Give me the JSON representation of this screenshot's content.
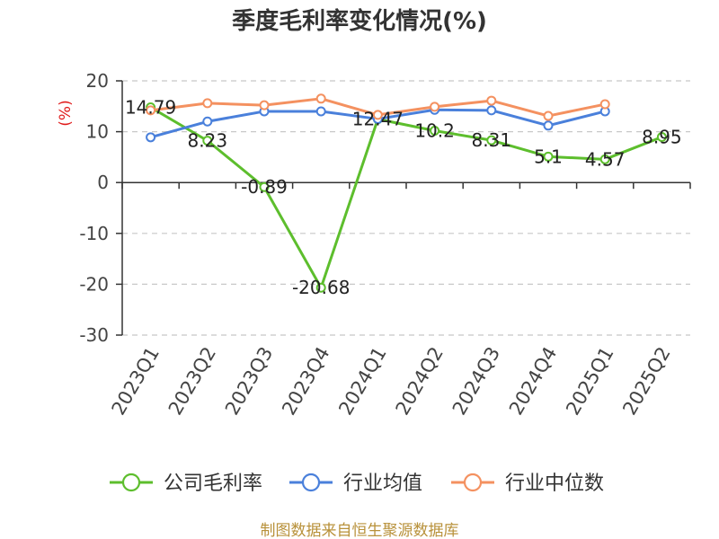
{
  "chart_data": {
    "type": "line",
    "title": "季度毛利率变化情况(%)",
    "ylabel": "(%)",
    "xlabel": "",
    "categories": [
      "2023Q1",
      "2023Q2",
      "2023Q3",
      "2023Q4",
      "2024Q1",
      "2024Q2",
      "2024Q3",
      "2024Q4",
      "2025Q1",
      "2025Q2"
    ],
    "ylim": [
      -30,
      20
    ],
    "yticks": [
      20,
      10,
      0,
      -10,
      -20,
      -30
    ],
    "grid": true,
    "legend_position": "bottom",
    "series": [
      {
        "name": "公司毛利率",
        "color": "#5dbe2d",
        "show_labels": true,
        "values": [
          14.79,
          8.23,
          -0.89,
          -20.68,
          12.47,
          10.2,
          8.31,
          5.1,
          4.57,
          8.95
        ]
      },
      {
        "name": "行业均值",
        "color": "#4a80db",
        "show_labels": false,
        "values": [
          8.9,
          12.0,
          14.0,
          14.0,
          12.5,
          14.3,
          14.2,
          11.2,
          14.0,
          null
        ]
      },
      {
        "name": "行业中位数",
        "color": "#f49160",
        "show_labels": false,
        "values": [
          14.2,
          15.6,
          15.2,
          16.5,
          13.3,
          14.9,
          16.1,
          13.1,
          15.4,
          null
        ]
      }
    ]
  },
  "footer": {
    "source": "制图数据来自恒生聚源数据库"
  }
}
